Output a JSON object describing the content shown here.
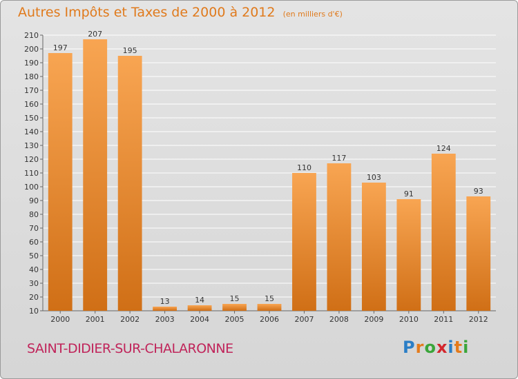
{
  "header": {
    "title": "Autres Impôts et Taxes de 2000 à 2012",
    "subtitle": "(en milliers d'€)"
  },
  "footer": {
    "place": "SAINT-DIDIER-SUR-CHALARONNE",
    "logo_letters": [
      {
        "char": "P",
        "color": "#2a7ec6"
      },
      {
        "char": "r",
        "color": "#e47b1c"
      },
      {
        "char": "o",
        "color": "#3aa53a"
      },
      {
        "char": "x",
        "color": "#d3262d"
      },
      {
        "char": "i",
        "color": "#2a7ec6"
      },
      {
        "char": "t",
        "color": "#e47b1c"
      },
      {
        "char": "i",
        "color": "#3aa53a"
      }
    ]
  },
  "colors": {
    "bar_light": "#f8a552",
    "bar_dark": "#d06f16",
    "title": "#e07a1c",
    "place": "#c0245a",
    "grid": "#ffffff"
  },
  "chart_data": {
    "type": "bar",
    "title": "Autres Impôts et Taxes de 2000 à 2012",
    "subtitle": "(en milliers d'€)",
    "categories": [
      "2000",
      "2001",
      "2002",
      "2003",
      "2004",
      "2005",
      "2006",
      "2007",
      "2008",
      "2009",
      "2010",
      "2011",
      "2012"
    ],
    "values": [
      197,
      207,
      195,
      13,
      14,
      15,
      15,
      110,
      117,
      103,
      91,
      124,
      93
    ],
    "ylim": [
      10,
      210
    ],
    "ytick_step": 10,
    "grid": true,
    "data_labels": true
  }
}
